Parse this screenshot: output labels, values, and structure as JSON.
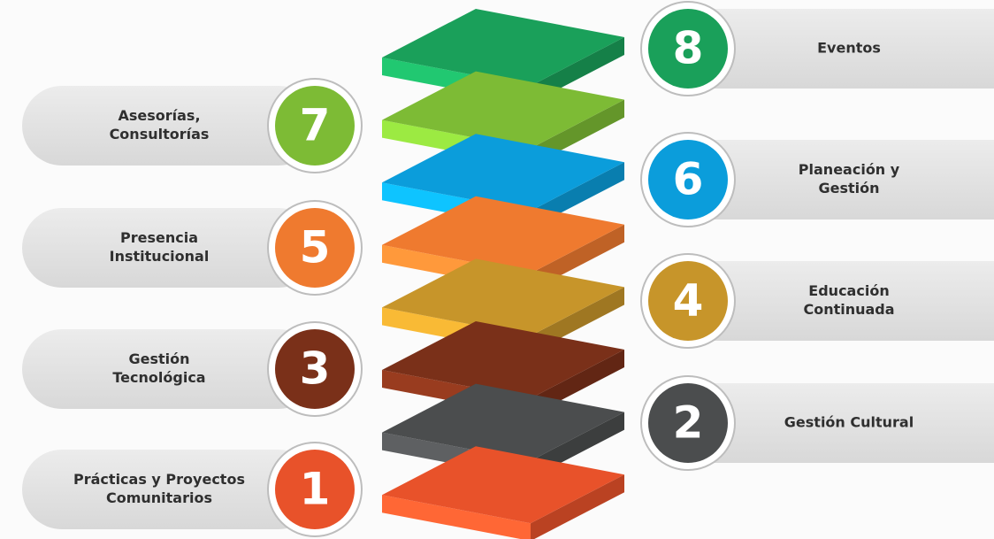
{
  "items": [
    {
      "number": "1",
      "label": [
        "Prácticas y Proyectos",
        "Comunitarios"
      ],
      "side": "left",
      "color": "#e8522a"
    },
    {
      "number": "2",
      "label": [
        "Gestión Cultural"
      ],
      "side": "right",
      "color": "#4b4d4e"
    },
    {
      "number": "3",
      "label": [
        "Gestión",
        "Tecnológica"
      ],
      "side": "left",
      "color": "#7a3019"
    },
    {
      "number": "4",
      "label": [
        "Educación",
        "Continuada"
      ],
      "side": "right",
      "color": "#c7952a"
    },
    {
      "number": "5",
      "label": [
        "Presencia",
        "Institucional"
      ],
      "side": "left",
      "color": "#ef7a2f"
    },
    {
      "number": "6",
      "label": [
        "Planeación y",
        "Gestión"
      ],
      "side": "right",
      "color": "#0b9ddb"
    },
    {
      "number": "7",
      "label": [
        "Asesorías,",
        "Consultorías"
      ],
      "side": "left",
      "color": "#7dbb35"
    },
    {
      "number": "8",
      "label": [
        "Eventos"
      ],
      "side": "right",
      "color": "#1aa05a"
    }
  ]
}
